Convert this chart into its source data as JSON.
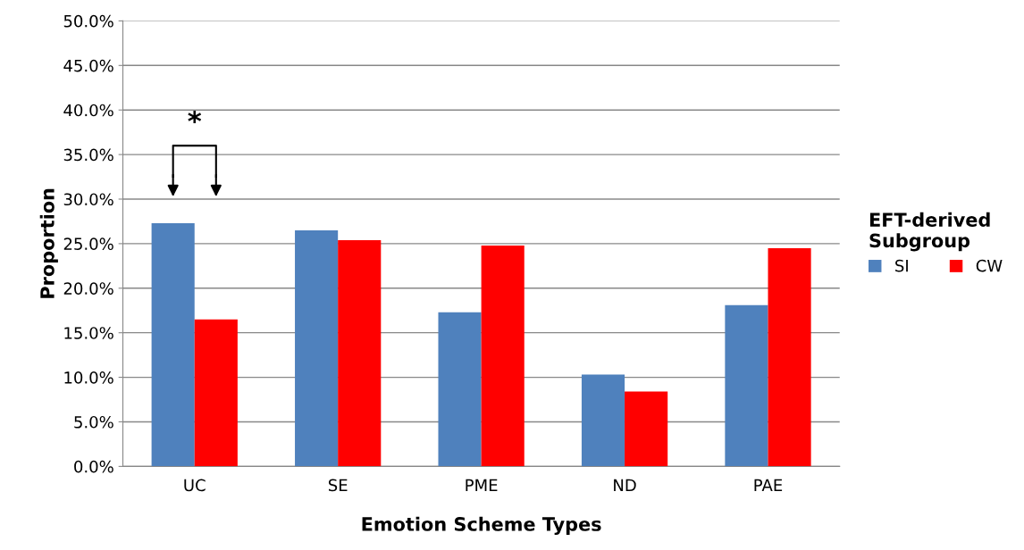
{
  "chart_data": {
    "type": "bar",
    "xlabel": "Emotion Scheme Types",
    "ylabel": "Proportion",
    "legend_title": "EFT-derived\nSubgroup",
    "categories": [
      "UC",
      "SE",
      "PME",
      "ND",
      "PAE"
    ],
    "series": [
      {
        "name": "SI",
        "color": "#4f81bd",
        "values": [
          27.3,
          26.5,
          17.3,
          10.3,
          18.1
        ]
      },
      {
        "name": "CW",
        "color": "#ff0000",
        "values": [
          16.5,
          25.4,
          24.8,
          8.4,
          24.5
        ]
      }
    ],
    "ylim": [
      0,
      50
    ],
    "yticks": [
      {
        "value": 0,
        "label": "0.0%"
      },
      {
        "value": 5,
        "label": "5.0%"
      },
      {
        "value": 10,
        "label": "10.0%"
      },
      {
        "value": 15,
        "label": "15.0%"
      },
      {
        "value": 20,
        "label": "20.0%"
      },
      {
        "value": 25,
        "label": "25.0%"
      },
      {
        "value": 30,
        "label": "30.0%"
      },
      {
        "value": 35,
        "label": "35.0%"
      },
      {
        "value": 40,
        "label": "40.0%"
      },
      {
        "value": 45,
        "label": "45.0%"
      },
      {
        "value": 50,
        "label": "50.0%"
      }
    ],
    "grid": "y",
    "legend": "right",
    "annotations": [
      "*"
    ]
  }
}
